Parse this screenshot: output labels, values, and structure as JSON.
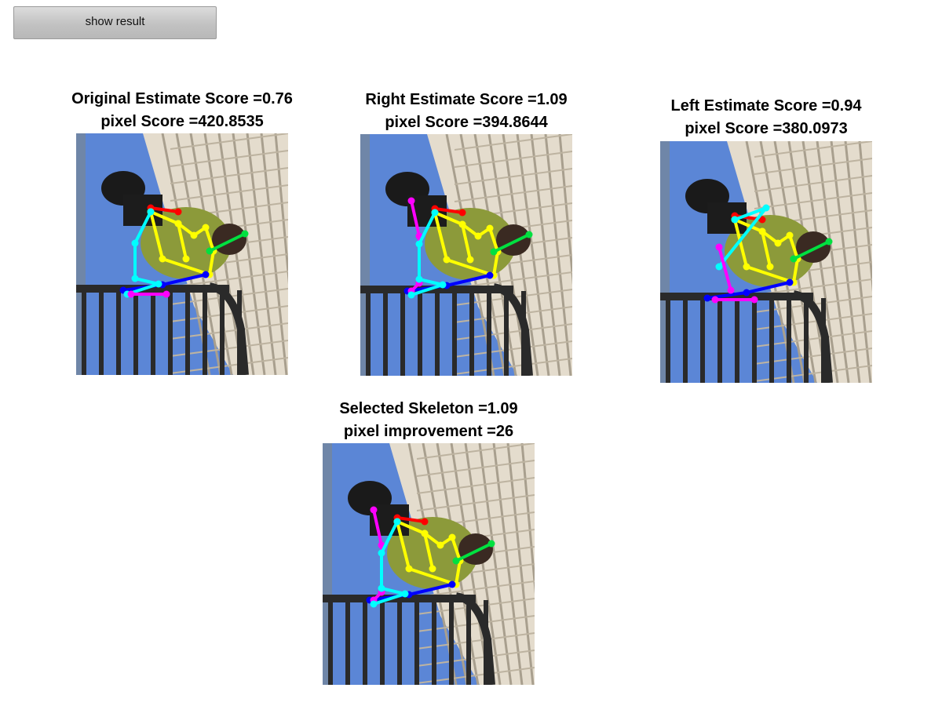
{
  "toolbar": {
    "show_result_label": "show result"
  },
  "panels": [
    {
      "title": "Original Estimate Score =0.76",
      "subtitle": "pixel Score =420.8535"
    },
    {
      "title": "Right Estimate Score =1.09",
      "subtitle": "pixel Score =394.8644"
    },
    {
      "title": "Left Estimate Score =0.94",
      "subtitle": "pixel Score =380.0973"
    },
    {
      "title": "Selected Skeleton =1.09",
      "subtitle": "pixel improvement =26"
    }
  ],
  "colors": {
    "sky": "#5b86d6",
    "building": "#e4dccd",
    "railing": "#2a2a2a",
    "shirt": "#8c9a3a",
    "limb_red": "#ff0000",
    "limb_yellow": "#ffff00",
    "limb_green": "#00e040",
    "limb_cyan": "#00ffff",
    "limb_magenta": "#ff00ff",
    "limb_blue": "#0000ff"
  }
}
